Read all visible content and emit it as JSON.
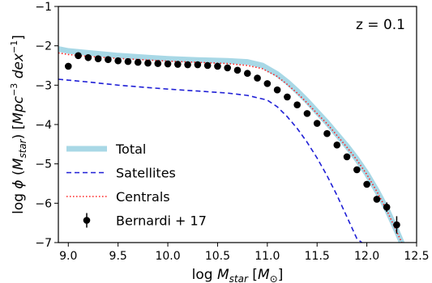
{
  "chart_data": {
    "type": "line",
    "annotation": "z = 0.1",
    "xlabel_parts": {
      "prefix": "log ",
      "sym": "M",
      "sub": "star",
      "unit_open": " [",
      "unit": "M",
      "unit_sub": "⊙",
      "unit_close": "]"
    },
    "ylabel_parts": {
      "prefix": "log ",
      "phi": "ϕ",
      "m_open": " (",
      "sym": "M",
      "sub": "star",
      "m_close": ") [",
      "unit1": "Mpc",
      "unit1_sup": "−3",
      "unit2": " dex",
      "unit2_sup": "−1",
      "close": "]"
    },
    "xlim": [
      8.9,
      12.5
    ],
    "ylim": [
      -7,
      -1
    ],
    "xticks": [
      9.0,
      9.5,
      10.0,
      10.5,
      11.0,
      11.5,
      12.0,
      12.5
    ],
    "xtick_labels": [
      "9.0",
      "9.5",
      "10.0",
      "10.5",
      "11.0",
      "11.5",
      "12.0",
      "12.5"
    ],
    "yticks": [
      -7,
      -6,
      -5,
      -4,
      -3,
      -2,
      -1
    ],
    "ytick_labels": [
      "−7",
      "−6",
      "−5",
      "−4",
      "−3",
      "−2",
      "−1"
    ],
    "legend_position": "bottom-left",
    "series": [
      {
        "name": "Total",
        "style": "solid-thick",
        "color": "#a8d8e6",
        "x": [
          8.9,
          9.0,
          9.2,
          9.5,
          9.8,
          10.0,
          10.3,
          10.6,
          10.8,
          10.95,
          11.1,
          11.2,
          11.3,
          11.4,
          11.5,
          11.6,
          11.7,
          11.8,
          11.9,
          12.0,
          12.1,
          12.2,
          12.3,
          12.35
        ],
        "y": [
          -2.08,
          -2.13,
          -2.18,
          -2.25,
          -2.3,
          -2.33,
          -2.36,
          -2.38,
          -2.41,
          -2.5,
          -2.72,
          -2.92,
          -3.15,
          -3.4,
          -3.68,
          -3.95,
          -4.25,
          -4.55,
          -4.88,
          -5.25,
          -5.68,
          -6.15,
          -6.7,
          -7.0
        ]
      },
      {
        "name": "Satellites",
        "style": "dashed",
        "color": "#1f1fd6",
        "x": [
          8.9,
          9.2,
          9.5,
          9.8,
          10.0,
          10.3,
          10.6,
          10.8,
          11.0,
          11.1,
          11.2,
          11.3,
          11.4,
          11.5,
          11.6,
          11.7,
          11.8,
          11.9,
          11.95
        ],
        "y": [
          -2.85,
          -2.92,
          -3.0,
          -3.06,
          -3.1,
          -3.15,
          -3.2,
          -3.26,
          -3.38,
          -3.55,
          -3.8,
          -4.1,
          -4.45,
          -4.85,
          -5.3,
          -5.8,
          -6.35,
          -6.9,
          -7.0
        ]
      },
      {
        "name": "Centrals",
        "style": "dotted",
        "color": "#ff2020",
        "x": [
          8.9,
          9.0,
          9.2,
          9.5,
          9.8,
          10.0,
          10.3,
          10.6,
          10.8,
          10.95,
          11.1,
          11.2,
          11.3,
          11.4,
          11.5,
          11.6,
          11.7,
          11.8,
          11.9,
          12.0,
          12.1,
          12.2,
          12.3,
          12.35
        ],
        "y": [
          -2.18,
          -2.22,
          -2.27,
          -2.32,
          -2.36,
          -2.39,
          -2.42,
          -2.45,
          -2.5,
          -2.58,
          -2.78,
          -2.98,
          -3.2,
          -3.45,
          -3.72,
          -3.98,
          -4.28,
          -4.58,
          -4.9,
          -5.27,
          -5.7,
          -6.18,
          -6.72,
          -7.0
        ]
      },
      {
        "name": "Bernardi + 17",
        "style": "points",
        "color": "#000000",
        "x": [
          9.0,
          9.1,
          9.2,
          9.3,
          9.4,
          9.5,
          9.6,
          9.7,
          9.8,
          9.9,
          10.0,
          10.1,
          10.2,
          10.3,
          10.4,
          10.5,
          10.6,
          10.7,
          10.8,
          10.9,
          11.0,
          11.1,
          11.2,
          11.3,
          11.4,
          11.5,
          11.6,
          11.7,
          11.8,
          11.9,
          12.0,
          12.1,
          12.2,
          12.3
        ],
        "y": [
          -2.52,
          -2.25,
          -2.3,
          -2.33,
          -2.35,
          -2.38,
          -2.4,
          -2.42,
          -2.44,
          -2.45,
          -2.46,
          -2.47,
          -2.48,
          -2.48,
          -2.5,
          -2.52,
          -2.56,
          -2.62,
          -2.7,
          -2.82,
          -2.96,
          -3.12,
          -3.3,
          -3.5,
          -3.72,
          -3.97,
          -4.23,
          -4.52,
          -4.82,
          -5.15,
          -5.52,
          -5.9,
          -6.1,
          -6.55
        ],
        "yerr": [
          0.08,
          0.05,
          0.04,
          0.04,
          0.04,
          0.03,
          0.03,
          0.03,
          0.03,
          0.03,
          0.03,
          0.03,
          0.03,
          0.03,
          0.03,
          0.03,
          0.03,
          0.03,
          0.03,
          0.03,
          0.03,
          0.03,
          0.03,
          0.03,
          0.03,
          0.04,
          0.04,
          0.04,
          0.05,
          0.05,
          0.06,
          0.08,
          0.12,
          0.22
        ]
      }
    ]
  }
}
